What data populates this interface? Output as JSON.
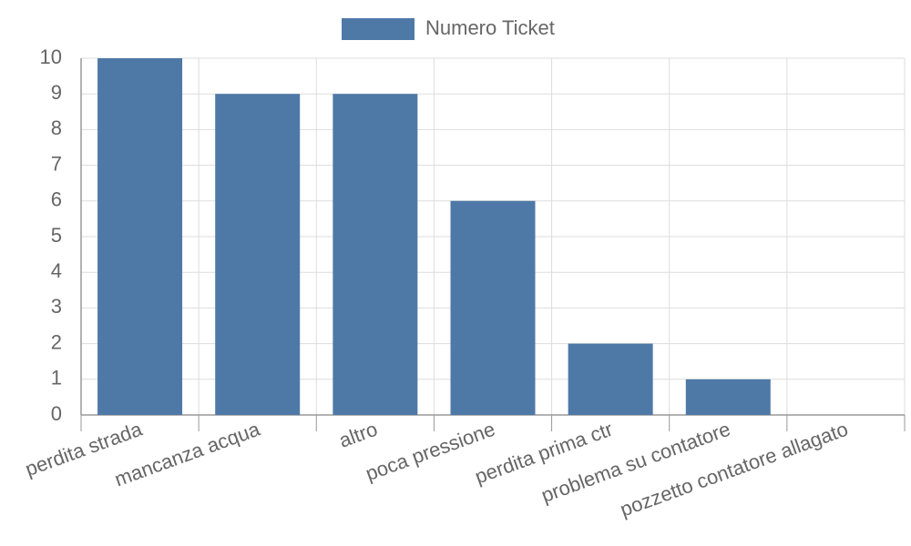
{
  "chart_data": {
    "type": "bar",
    "categories": [
      "perdita strada",
      "mancanza acqua",
      "altro",
      "poca pressione",
      "perdita prima ctr",
      "problema su contatore",
      "pozzetto contatore allagato"
    ],
    "series": [
      {
        "name": "Numero Ticket",
        "color": "#4e79a7",
        "values": [
          10,
          9,
          9,
          6,
          2,
          1,
          0
        ]
      }
    ],
    "ylim": [
      0,
      10
    ],
    "yticks": [
      0,
      1,
      2,
      3,
      4,
      5,
      6,
      7,
      8,
      9,
      10
    ],
    "grid": true,
    "legend": "top"
  }
}
